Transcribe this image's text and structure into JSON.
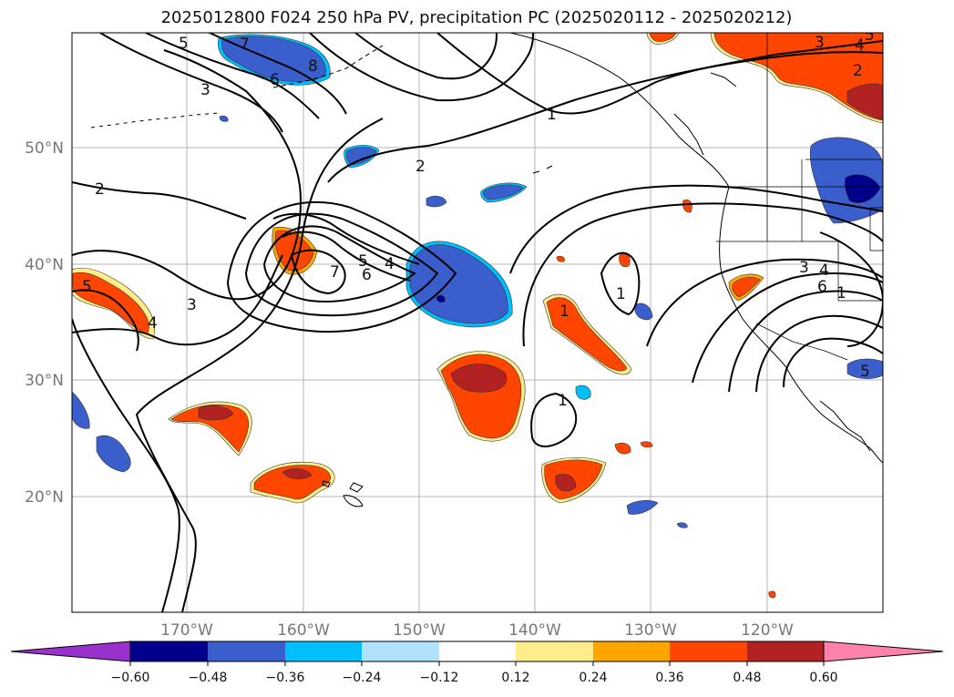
{
  "title": "2025012800 F024 250 hPa PV, precipitation PC (2025020112 - 2025020212)",
  "map": {
    "lon_labels": [
      "170°W",
      "160°W",
      "150°W",
      "140°W",
      "130°W",
      "120°W"
    ],
    "lat_labels": [
      "50°N",
      "40°N",
      "30°N",
      "20°N"
    ],
    "contour_labels": [
      "5",
      "7",
      "3",
      "8",
      "6",
      "2",
      "2",
      "1",
      "5",
      "4",
      "7",
      "6",
      "3",
      "4",
      "5",
      "1",
      "1",
      "1",
      "3",
      "4",
      "6",
      "1",
      "5",
      "3",
      "2",
      "4",
      "5"
    ],
    "shading_colors": {
      "neg_strong": "#00008b",
      "neg_mid": "#3a5fcd",
      "neg_light": "#00bfff",
      "pos_light": "#ffec8b",
      "pos_mid": "#ff4500",
      "pos_strong": "#b22222"
    }
  },
  "colorbar": {
    "ticks": [
      "−0.60",
      "−0.48",
      "−0.36",
      "−0.24",
      "−0.12",
      "0.12",
      "0.24",
      "0.36",
      "0.48",
      "0.60"
    ],
    "colors": [
      "#9932cc",
      "#00008b",
      "#3a5fcd",
      "#00bfff",
      "#b0e2ff",
      "#ffffff",
      "#ffec8b",
      "#ffa500",
      "#ff4500",
      "#b22222",
      "#ff82ab"
    ]
  }
}
